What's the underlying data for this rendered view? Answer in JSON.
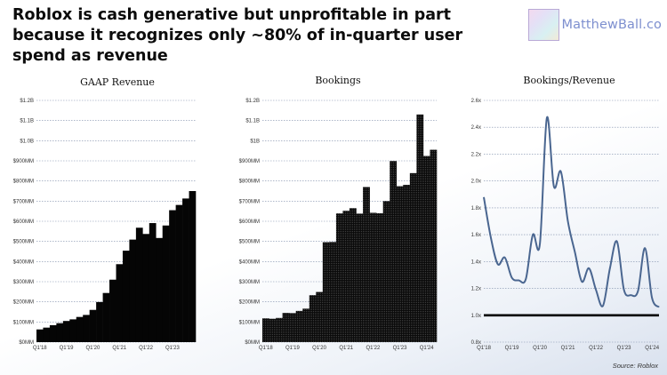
{
  "header": {
    "title": "Roblox is cash generative but unprofitable in part because it recognizes only ~80% of in-quarter user spend as revenue",
    "brand": "MatthewBall.co",
    "source": "Source: Roblox"
  },
  "chart_data": [
    {
      "type": "bar",
      "title": "GAAP Revenue",
      "ylabel": "",
      "ylim": [
        0,
        1.2
      ],
      "yticks": [
        0,
        0.1,
        0.2,
        0.3,
        0.4,
        0.5,
        0.6,
        0.7,
        0.8,
        0.9,
        1.0,
        1.1,
        1.2
      ],
      "ytick_labels": [
        "$0MM",
        "$100MM",
        "$200MM",
        "$300MM",
        "$400MM",
        "$500MM",
        "$600MM",
        "$700MM",
        "$800MM",
        "$900MM",
        "$1.0B",
        "$1.1B",
        "$1.2B"
      ],
      "categories": [
        "Q1'18",
        "Q2'18",
        "Q3'18",
        "Q4'18",
        "Q1'19",
        "Q2'19",
        "Q3'19",
        "Q4'19",
        "Q1'20",
        "Q2'20",
        "Q3'20",
        "Q4'20",
        "Q1'21",
        "Q2'21",
        "Q3'21",
        "Q4'21",
        "Q1'22",
        "Q2'22",
        "Q3'22",
        "Q4'22",
        "Q1'23",
        "Q2'23",
        "Q3'23",
        "Q4'23"
      ],
      "xtick_labels": [
        "Q1'18",
        "Q1'19",
        "Q1'20",
        "Q1'21",
        "Q1'22",
        "Q1'23"
      ],
      "values": [
        0.063,
        0.072,
        0.084,
        0.094,
        0.105,
        0.113,
        0.125,
        0.135,
        0.16,
        0.199,
        0.244,
        0.31,
        0.387,
        0.454,
        0.509,
        0.568,
        0.537,
        0.591,
        0.517,
        0.579,
        0.655,
        0.681,
        0.713,
        0.75
      ]
    },
    {
      "type": "bar",
      "title": "Bookings",
      "ylabel": "",
      "ylim": [
        0,
        1.2
      ],
      "yticks": [
        0,
        0.1,
        0.2,
        0.3,
        0.4,
        0.5,
        0.6,
        0.7,
        0.8,
        0.9,
        1.0,
        1.1,
        1.2
      ],
      "ytick_labels": [
        "$0MM",
        "$100MM",
        "$200MM",
        "$300MM",
        "$400MM",
        "$500MM",
        "$600MM",
        "$700MM",
        "$800MM",
        "$900MM",
        "$1B",
        "$1.1B",
        "$1.2B"
      ],
      "categories": [
        "Q1'18",
        "Q2'18",
        "Q3'18",
        "Q4'18",
        "Q1'19",
        "Q2'19",
        "Q3'19",
        "Q4'19",
        "Q1'20",
        "Q2'20",
        "Q3'20",
        "Q4'20",
        "Q1'21",
        "Q2'21",
        "Q3'21",
        "Q4'21",
        "Q1'22",
        "Q2'22",
        "Q3'22",
        "Q4'22",
        "Q1'23",
        "Q2'23",
        "Q3'23",
        "Q4'23",
        "Q1'24",
        "Q2'24"
      ],
      "xtick_labels": [
        "Q1'18",
        "Q1'19",
        "Q1'20",
        "Q1'21",
        "Q1'22",
        "Q1'23",
        "Q1'24"
      ],
      "values": [
        0.118,
        0.116,
        0.12,
        0.145,
        0.144,
        0.155,
        0.166,
        0.233,
        0.249,
        0.496,
        0.497,
        0.639,
        0.652,
        0.665,
        0.638,
        0.77,
        0.642,
        0.64,
        0.7,
        0.899,
        0.774,
        0.781,
        0.839,
        1.13,
        0.924,
        0.955
      ]
    },
    {
      "type": "line",
      "title": "Bookings/Revenue",
      "ylim": [
        0.8,
        2.6
      ],
      "yticks": [
        0.8,
        1.0,
        1.2,
        1.4,
        1.6,
        1.8,
        2.0,
        2.2,
        2.4,
        2.6
      ],
      "ytick_labels": [
        "0.8x",
        "1.0x",
        "1.2x",
        "1.4x",
        "1.6x",
        "1.8x",
        "2.0x",
        "2.2x",
        "2.4x",
        "2.6x"
      ],
      "categories": [
        "Q1'18",
        "Q2'18",
        "Q3'18",
        "Q4'18",
        "Q1'19",
        "Q2'19",
        "Q3'19",
        "Q4'19",
        "Q1'20",
        "Q2'20",
        "Q3'20",
        "Q4'20",
        "Q1'21",
        "Q2'21",
        "Q3'21",
        "Q4'21",
        "Q1'22",
        "Q2'22",
        "Q3'22",
        "Q4'22",
        "Q1'23",
        "Q2'23",
        "Q3'23",
        "Q4'23",
        "Q1'24",
        "Q2'24"
      ],
      "xtick_labels": [
        "Q1'18",
        "Q1'19",
        "Q1'20",
        "Q1'21",
        "Q1'22",
        "Q1'23",
        "Q1'24"
      ],
      "values": [
        1.88,
        1.58,
        1.38,
        1.43,
        1.28,
        1.26,
        1.27,
        1.6,
        1.53,
        2.47,
        1.96,
        2.07,
        1.7,
        1.47,
        1.25,
        1.35,
        1.19,
        1.07,
        1.35,
        1.55,
        1.19,
        1.15,
        1.18,
        1.5,
        1.13,
        1.06
      ],
      "reference_line": 1.0,
      "line_color": "#4a6690"
    }
  ]
}
